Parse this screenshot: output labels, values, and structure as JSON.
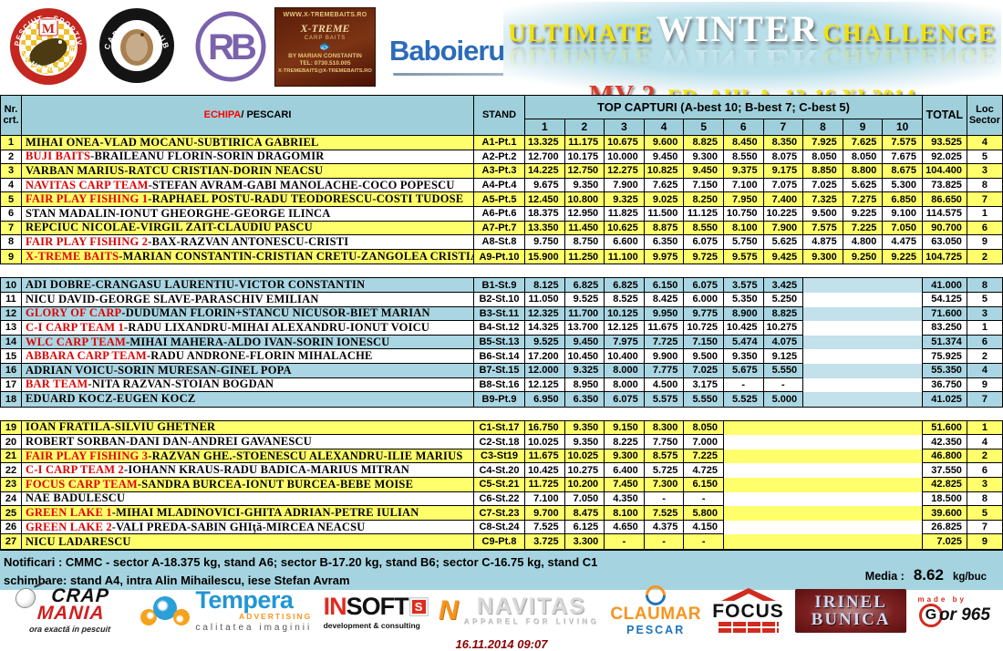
{
  "title": {
    "l1a": "ULTIMATE",
    "l1b": "WINTER",
    "l1c": "CHALLENGE",
    "l2a": "MV 2",
    "l2b": ", ED. AIII-A, 13-16.XI.2014"
  },
  "logos_top": {
    "moara": {
      "arc_top": "PESCUIT · SPORTIV",
      "arc_bottom": "LACUL MOARA VLASIEI 2"
    },
    "carping": {
      "arc_top": "CARPING CLUB"
    },
    "rb": {
      "text": "RB"
    },
    "xtreme": {
      "l1": "WWW.X-TREMEBAITS.RO",
      "l2": "X-TREME",
      "l3": "CARP BAITS",
      "l4": "BY MARIAN CONSTANTIN",
      "l5": "TEL: 0730.510.005",
      "l6": "X-TREMEBAITS@X-TREMEBAITS.RO"
    },
    "baboieru": {
      "name": "Baboieru",
      "tld": ".com"
    }
  },
  "table": {
    "header": {
      "nr": "Nr.\ncrt.",
      "echipa": "ECHIPA",
      "pescari": " / PESCARI",
      "stand": "STAND",
      "topcap": "TOP CAPTURI (A-best 10; B-best 7; C-best 5)",
      "nums": [
        "1",
        "2",
        "3",
        "4",
        "5",
        "6",
        "7",
        "8",
        "9",
        "10"
      ],
      "total": "TOTAL",
      "loc": "Loc\nSector"
    },
    "sections": [
      {
        "id": "A",
        "value_cols": 10,
        "shade": "yellow",
        "rows": [
          {
            "nr": "1",
            "team": "",
            "names": "MIHAI ONEA-VLAD MOCANU-SUBTIRICA GABRIEL",
            "stand": "A1-Pt.1",
            "values": [
              "13.325",
              "11.175",
              "10.675",
              "9.600",
              "8.825",
              "8.450",
              "8.350",
              "7.925",
              "7.625",
              "7.575"
            ],
            "total": "93.525",
            "loc": "4"
          },
          {
            "nr": "2",
            "team": "BUJI BAITS",
            "names": "-BRAILEANU FLORIN-SORIN DRAGOMIR",
            "stand": "A2-Pt.2",
            "values": [
              "12.700",
              "10.175",
              "10.000",
              "9.450",
              "9.300",
              "8.550",
              "8.075",
              "8.050",
              "8.050",
              "7.675"
            ],
            "total": "92.025",
            "loc": "5"
          },
          {
            "nr": "3",
            "team": "",
            "names": "VARBAN MARIUS-RATCU CRISTIAN-DORIN NEACSU",
            "stand": "A3-Pt.3",
            "values": [
              "14.225",
              "12.750",
              "12.275",
              "10.825",
              "9.450",
              "9.375",
              "9.175",
              "8.850",
              "8.800",
              "8.675"
            ],
            "total": "104.400",
            "loc": "3"
          },
          {
            "nr": "4",
            "team": "NAVITAS CARP TEAM",
            "names": "-STEFAN AVRAM-GABI MANOLACHE-COCO POPESCU",
            "stand": "A4-Pt.4",
            "values": [
              "9.675",
              "9.350",
              "7.900",
              "7.625",
              "7.150",
              "7.100",
              "7.075",
              "7.025",
              "5.625",
              "5.300"
            ],
            "total": "73.825",
            "loc": "8"
          },
          {
            "nr": "5",
            "team": "FAIR PLAY FISHING 1",
            "names": "-RAPHAEL POSTU-RADU TEODORESCU-COSTI TUDOSE",
            "stand": "A5-Pt.5",
            "values": [
              "12.450",
              "10.800",
              "9.325",
              "9.025",
              "8.250",
              "7.950",
              "7.400",
              "7.325",
              "7.275",
              "6.850"
            ],
            "total": "86.650",
            "loc": "7"
          },
          {
            "nr": "6",
            "team": "",
            "names": "STAN MADALIN-IONUT GHEORGHE-GEORGE ILINCA",
            "stand": "A6-Pt.6",
            "values": [
              "18.375",
              "12.950",
              "11.825",
              "11.500",
              "11.125",
              "10.750",
              "10.225",
              "9.500",
              "9.225",
              "9.100"
            ],
            "total": "114.575",
            "loc": "1"
          },
          {
            "nr": "7",
            "team": "",
            "names": "REPCIUC NICOLAE-VIRGIL ZAIT-CLAUDIU PASCU",
            "stand": "A7-Pt.7",
            "values": [
              "13.350",
              "11.450",
              "10.625",
              "8.875",
              "8.550",
              "8.100",
              "7.900",
              "7.575",
              "7.225",
              "7.050"
            ],
            "total": "90.700",
            "loc": "6"
          },
          {
            "nr": "8",
            "team": "FAIR PLAY FISHING 2",
            "names": "-BAX-RAZVAN ANTONESCU-CRISTI",
            "stand": "A8-St.8",
            "values": [
              "9.750",
              "8.750",
              "6.600",
              "6.350",
              "6.075",
              "5.750",
              "5.625",
              "4.875",
              "4.800",
              "4.475"
            ],
            "total": "63.050",
            "loc": "9"
          },
          {
            "nr": "9",
            "team": "X-TREME BAITS",
            "names": "-MARIAN CONSTANTIN-CRISTIAN CRETU-ZANGOLEA CRISTIAN",
            "stand": "A9-Pt.10",
            "values": [
              "15.900",
              "11.250",
              "11.100",
              "9.975",
              "9.725",
              "9.575",
              "9.425",
              "9.300",
              "9.250",
              "9.225"
            ],
            "total": "104.725",
            "loc": "2"
          }
        ]
      },
      {
        "id": "B",
        "value_cols": 7,
        "shade": "blue",
        "rows": [
          {
            "nr": "10",
            "team": "",
            "names": "ADI DOBRE-CRANGASU LAURENTIU-VICTOR CONSTANTIN",
            "stand": "B1-St.9",
            "values": [
              "8.125",
              "6.825",
              "6.825",
              "6.150",
              "6.075",
              "3.575",
              "3.425"
            ],
            "total": "41.000",
            "loc": "8"
          },
          {
            "nr": "11",
            "team": "",
            "names": "NICU DAVID-GEORGE SLAVE-PARASCHIV EMILIAN",
            "stand": "B2-St.10",
            "values": [
              "11.050",
              "9.525",
              "8.525",
              "8.425",
              "6.000",
              "5.350",
              "5.250"
            ],
            "total": "54.125",
            "loc": "5"
          },
          {
            "nr": "12",
            "team": "GLORY OF CARP",
            "names": "-DUDUMAN FLORIN+STANCU NICUSOR-BIET MARIAN",
            "stand": "B3-St.11",
            "values": [
              "12.325",
              "11.700",
              "10.125",
              "9.950",
              "9.775",
              "8.900",
              "8.825"
            ],
            "total": "71.600",
            "loc": "3"
          },
          {
            "nr": "13",
            "team": "C-I CARP TEAM 1",
            "names": "-RADU LIXANDRU-MIHAI ALEXANDRU-IONUT VOICU",
            "stand": "B4-St.12",
            "values": [
              "14.325",
              "13.700",
              "12.125",
              "11.675",
              "10.725",
              "10.425",
              "10.275"
            ],
            "total": "83.250",
            "loc": "1"
          },
          {
            "nr": "14",
            "team": "WLC CARP TEAM",
            "names": "-MIHAI MAHERA-ALDO IVAN-SORIN IONESCU",
            "stand": "B5-St.13",
            "values": [
              "9.525",
              "9.450",
              "7.975",
              "7.725",
              "7.150",
              "5.474",
              "4.075"
            ],
            "total": "51.374",
            "loc": "6"
          },
          {
            "nr": "15",
            "team": "ABBARA CARP TEAM",
            "names": "-RADU ANDRONE-FLORIN MIHALACHE",
            "stand": "B6-St.14",
            "values": [
              "17.200",
              "10.450",
              "10.400",
              "9.900",
              "9.500",
              "9.350",
              "9.125"
            ],
            "total": "75.925",
            "loc": "2"
          },
          {
            "nr": "16",
            "team": "",
            "names": "ADRIAN VOICU-SORIN MURESAN-GINEL POPA",
            "stand": "B7-St.15",
            "values": [
              "12.000",
              "9.325",
              "8.000",
              "7.775",
              "7.025",
              "5.675",
              "5.550"
            ],
            "total": "55.350",
            "loc": "4"
          },
          {
            "nr": "17",
            "team": "BAR TEAM",
            "names": "-NITA RAZVAN-STOIAN BOGDAN",
            "stand": "B8-St.16",
            "values": [
              "12.125",
              "8.950",
              "8.000",
              "4.500",
              "3.175",
              "-",
              "-"
            ],
            "total": "36.750",
            "loc": "9"
          },
          {
            "nr": "18",
            "team": "",
            "names": "EDUARD KOCZ-EUGEN KOCZ",
            "stand": "B9-Pt.9",
            "values": [
              "6.950",
              "6.350",
              "6.075",
              "5.575",
              "5.550",
              "5.525",
              "5.000"
            ],
            "total": "41.025",
            "loc": "7"
          }
        ]
      },
      {
        "id": "C",
        "value_cols": 5,
        "shade": "yellow",
        "rows": [
          {
            "nr": "19",
            "team": "",
            "names": "IOAN FRATILA-SILVIU GHETNER",
            "stand": "C1-St.17",
            "values": [
              "16.750",
              "9.350",
              "9.150",
              "8.300",
              "8.050"
            ],
            "total": "51.600",
            "loc": "1"
          },
          {
            "nr": "20",
            "team": "",
            "names": "ROBERT SORBAN-DANI DAN-ANDREI GAVANESCU",
            "stand": "C2-St.18",
            "values": [
              "10.025",
              "9.350",
              "8.225",
              "7.750",
              "7.000"
            ],
            "total": "42.350",
            "loc": "4"
          },
          {
            "nr": "21",
            "team": "FAIR PLAY FISHING 3",
            "names": "-RAZVAN GHE.-STOENESCU ALEXANDRU-ILIE MARIUS",
            "stand": "C3-St19",
            "values": [
              "11.675",
              "10.025",
              "9.300",
              "8.575",
              "7.225"
            ],
            "total": "46.800",
            "loc": "2"
          },
          {
            "nr": "22",
            "team": "C-I CARP TEAM 2",
            "names": "-IOHANN KRAUS-RADU BADICA-MARIUS MITRAN",
            "stand": "C4-St.20",
            "values": [
              "10.425",
              "10.275",
              "6.400",
              "5.725",
              "4.725"
            ],
            "total": "37.550",
            "loc": "6"
          },
          {
            "nr": "23",
            "team": "FOCUS CARP TEAM",
            "names": "-SANDRA BURCEA-IONUT BURCEA-BEBE MOISE",
            "stand": "C5-St.21",
            "values": [
              "11.725",
              "10.200",
              "7.450",
              "7.300",
              "6.150"
            ],
            "total": "42.825",
            "loc": "3"
          },
          {
            "nr": "24",
            "team": "",
            "names": "NAE BADULESCU",
            "stand": "C6-St.22",
            "values": [
              "7.100",
              "7.050",
              "4.350",
              "-",
              "-"
            ],
            "total": "18.500",
            "loc": "8"
          },
          {
            "nr": "25",
            "team": "GREEN LAKE 1",
            "names": "-MIHAI MLADINOVICI-GHITA ADRIAN-PETRE IULIAN",
            "stand": "C7-St.23",
            "values": [
              "9.700",
              "8.475",
              "8.100",
              "7.525",
              "5.800"
            ],
            "total": "39.600",
            "loc": "5"
          },
          {
            "nr": "26",
            "team": "GREEN LAKE 2",
            "names": "-VALI PREDA-SABIN GHIţă-MIRCEA NEACSU",
            "stand": "C8-St.24",
            "values": [
              "7.525",
              "6.125",
              "4.650",
              "4.375",
              "4.150"
            ],
            "total": "26.825",
            "loc": "7"
          },
          {
            "nr": "27",
            "team": "",
            "names": "NICU LADARESCU",
            "stand": "C9-Pt.8",
            "values": [
              "3.725",
              "3.300",
              "-",
              "-",
              "-"
            ],
            "total": "7.025",
            "loc": "9"
          }
        ]
      }
    ]
  },
  "notes": {
    "line1": "Notificari : CMMC - sector A-18.375 kg, stand A6; sector B-17.20 kg, stand B6; sector C-16.75 kg, stand C1",
    "line2": "schimbare: stand A4, intra Alin Mihailescu, iese Stefan Avram",
    "media_label": "Media :",
    "media_value": "8.62",
    "media_unit": "kg/buc"
  },
  "logos_bottom": {
    "crapmania": {
      "l1": "CRAP",
      "l2": "MANIA",
      "l3": "ora exactă in pescuit"
    },
    "tempera": {
      "name": "Tempera",
      "sub": "ADVERTISING",
      "tag": "calitatea imaginii"
    },
    "insoft": {
      "a": "IN",
      "b": "SOFT",
      "sq": "S",
      "tag": "development & consulting"
    },
    "navitas": {
      "mark": "N",
      "name": "NAVITAS",
      "tag": "APPAREL FOR LIVING"
    },
    "claumar": {
      "a": "CLAUMAR",
      "b": "PESCAR"
    },
    "focus": {
      "name": "FOCUS"
    },
    "irinel": {
      "a": "IRINEL",
      "b": "BUNICA"
    },
    "gor": {
      "pre": "made by",
      "g": "G",
      "rest": "or 965"
    }
  },
  "footer": {
    "timestamp": "16.11.2014 09:07"
  }
}
